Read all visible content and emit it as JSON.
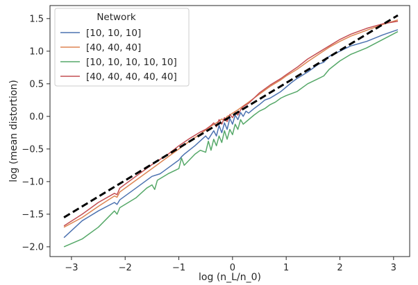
{
  "chart_data": {
    "type": "line",
    "xlabel": "log (n_L/n_0)",
    "ylabel": "log (mean distortion)",
    "xlim": [
      -3.4,
      3.3
    ],
    "ylim": [
      -2.15,
      1.7
    ],
    "xticks": [
      -3,
      -2,
      -1,
      0,
      1,
      2,
      3
    ],
    "xtick_labels": [
      "−3",
      "−2",
      "−1",
      "0",
      "1",
      "2",
      "3"
    ],
    "yticks": [
      -2.0,
      -1.5,
      -1.0,
      -0.5,
      0.0,
      0.5,
      1.0,
      1.5
    ],
    "ytick_labels": [
      "−2.0",
      "−1.5",
      "−1.0",
      "−0.5",
      "0.0",
      "0.5",
      "1.0",
      "1.5"
    ],
    "grid": false,
    "legend": {
      "title": "Network",
      "position": "top-left"
    },
    "series": [
      {
        "name": "[10, 10, 10]",
        "color": "#4c72b0",
        "x": [
          -3.14,
          -2.8,
          -2.5,
          -2.2,
          -2.15,
          -2.1,
          -1.8,
          -1.5,
          -1.35,
          -1.3,
          -1.0,
          -0.95,
          -0.9,
          -0.7,
          -0.5,
          -0.45,
          -0.35,
          -0.3,
          -0.25,
          -0.2,
          -0.15,
          -0.1,
          -0.05,
          0.0,
          0.05,
          0.1,
          0.15,
          0.2,
          0.25,
          0.3,
          0.4,
          0.5,
          0.6,
          0.7,
          0.8,
          0.9,
          1.0,
          1.1,
          1.2,
          1.4,
          1.6,
          1.7,
          1.8,
          2.0,
          2.2,
          2.5,
          2.8,
          3.08
        ],
        "y": [
          -1.86,
          -1.6,
          -1.45,
          -1.32,
          -1.35,
          -1.28,
          -1.1,
          -0.92,
          -0.88,
          -0.85,
          -0.67,
          -0.62,
          -0.58,
          -0.45,
          -0.3,
          -0.35,
          -0.22,
          -0.3,
          -0.14,
          -0.25,
          -0.1,
          -0.2,
          -0.03,
          -0.12,
          0.02,
          -0.05,
          0.06,
          0.0,
          0.08,
          0.05,
          0.12,
          0.18,
          0.25,
          0.28,
          0.33,
          0.38,
          0.45,
          0.52,
          0.58,
          0.68,
          0.8,
          0.83,
          0.92,
          1.0,
          1.08,
          1.15,
          1.25,
          1.33
        ]
      },
      {
        "name": "[40, 40, 40]",
        "color": "#dd8452",
        "x": [
          -3.14,
          -2.8,
          -2.5,
          -2.2,
          -2.15,
          -2.1,
          -1.8,
          -1.5,
          -1.2,
          -1.0,
          -0.8,
          -0.6,
          -0.4,
          -0.3,
          -0.2,
          -0.15,
          -0.1,
          -0.05,
          0.0,
          0.1,
          0.2,
          0.3,
          0.5,
          0.7,
          0.9,
          1.0,
          1.2,
          1.4,
          1.6,
          1.8,
          2.0,
          2.2,
          2.5,
          2.8,
          3.08
        ],
        "y": [
          -1.7,
          -1.55,
          -1.38,
          -1.22,
          -1.24,
          -1.16,
          -0.98,
          -0.8,
          -0.62,
          -0.5,
          -0.38,
          -0.27,
          -0.15,
          -0.1,
          -0.04,
          -0.06,
          0.0,
          0.02,
          0.05,
          0.1,
          0.16,
          0.22,
          0.34,
          0.46,
          0.56,
          0.62,
          0.72,
          0.84,
          0.95,
          1.06,
          1.15,
          1.23,
          1.32,
          1.41,
          1.48
        ]
      },
      {
        "name": "[10, 10, 10, 10, 10]",
        "color": "#55a868",
        "x": [
          -3.14,
          -2.8,
          -2.5,
          -2.2,
          -2.15,
          -2.1,
          -1.8,
          -1.6,
          -1.5,
          -1.45,
          -1.4,
          -1.2,
          -1.0,
          -0.95,
          -0.9,
          -0.7,
          -0.6,
          -0.5,
          -0.45,
          -0.4,
          -0.35,
          -0.3,
          -0.25,
          -0.2,
          -0.15,
          -0.1,
          -0.05,
          0.0,
          0.05,
          0.1,
          0.15,
          0.2,
          0.3,
          0.4,
          0.5,
          0.6,
          0.7,
          0.8,
          0.9,
          1.0,
          1.2,
          1.4,
          1.6,
          1.7,
          1.8,
          2.0,
          2.2,
          2.5,
          2.8,
          3.08
        ],
        "y": [
          -2.0,
          -1.88,
          -1.7,
          -1.45,
          -1.5,
          -1.4,
          -1.25,
          -1.1,
          -1.05,
          -1.12,
          -0.98,
          -0.88,
          -0.8,
          -0.64,
          -0.75,
          -0.58,
          -0.52,
          -0.55,
          -0.38,
          -0.52,
          -0.35,
          -0.45,
          -0.3,
          -0.4,
          -0.22,
          -0.35,
          -0.2,
          -0.28,
          -0.12,
          -0.2,
          -0.05,
          -0.12,
          -0.05,
          0.02,
          0.08,
          0.12,
          0.18,
          0.22,
          0.28,
          0.32,
          0.38,
          0.5,
          0.58,
          0.62,
          0.72,
          0.85,
          0.95,
          1.05,
          1.18,
          1.3
        ]
      },
      {
        "name": "[40, 40, 40, 40, 40]",
        "color": "#c44e52",
        "x": [
          -3.14,
          -2.8,
          -2.5,
          -2.2,
          -2.15,
          -2.1,
          -1.8,
          -1.5,
          -1.2,
          -1.0,
          -0.8,
          -0.6,
          -0.5,
          -0.4,
          -0.35,
          -0.3,
          -0.25,
          -0.2,
          -0.15,
          -0.1,
          -0.05,
          0.0,
          0.05,
          0.1,
          0.15,
          0.2,
          0.3,
          0.5,
          0.7,
          0.9,
          1.0,
          1.2,
          1.4,
          1.6,
          1.8,
          2.0,
          2.2,
          2.5,
          2.8,
          3.08
        ],
        "y": [
          -1.68,
          -1.5,
          -1.32,
          -1.18,
          -1.2,
          -1.1,
          -0.92,
          -0.74,
          -0.58,
          -0.45,
          -0.34,
          -0.24,
          -0.2,
          -0.14,
          -0.1,
          -0.16,
          -0.05,
          -0.12,
          -0.02,
          -0.08,
          0.03,
          -0.02,
          0.06,
          0.02,
          0.1,
          0.15,
          0.2,
          0.36,
          0.48,
          0.58,
          0.64,
          0.75,
          0.88,
          0.98,
          1.08,
          1.18,
          1.26,
          1.35,
          1.42,
          1.46
        ]
      }
    ],
    "reference_line": {
      "style": "dashed",
      "color": "#000000",
      "x": [
        -3.14,
        3.08
      ],
      "y": [
        -1.55,
        1.55
      ]
    }
  }
}
